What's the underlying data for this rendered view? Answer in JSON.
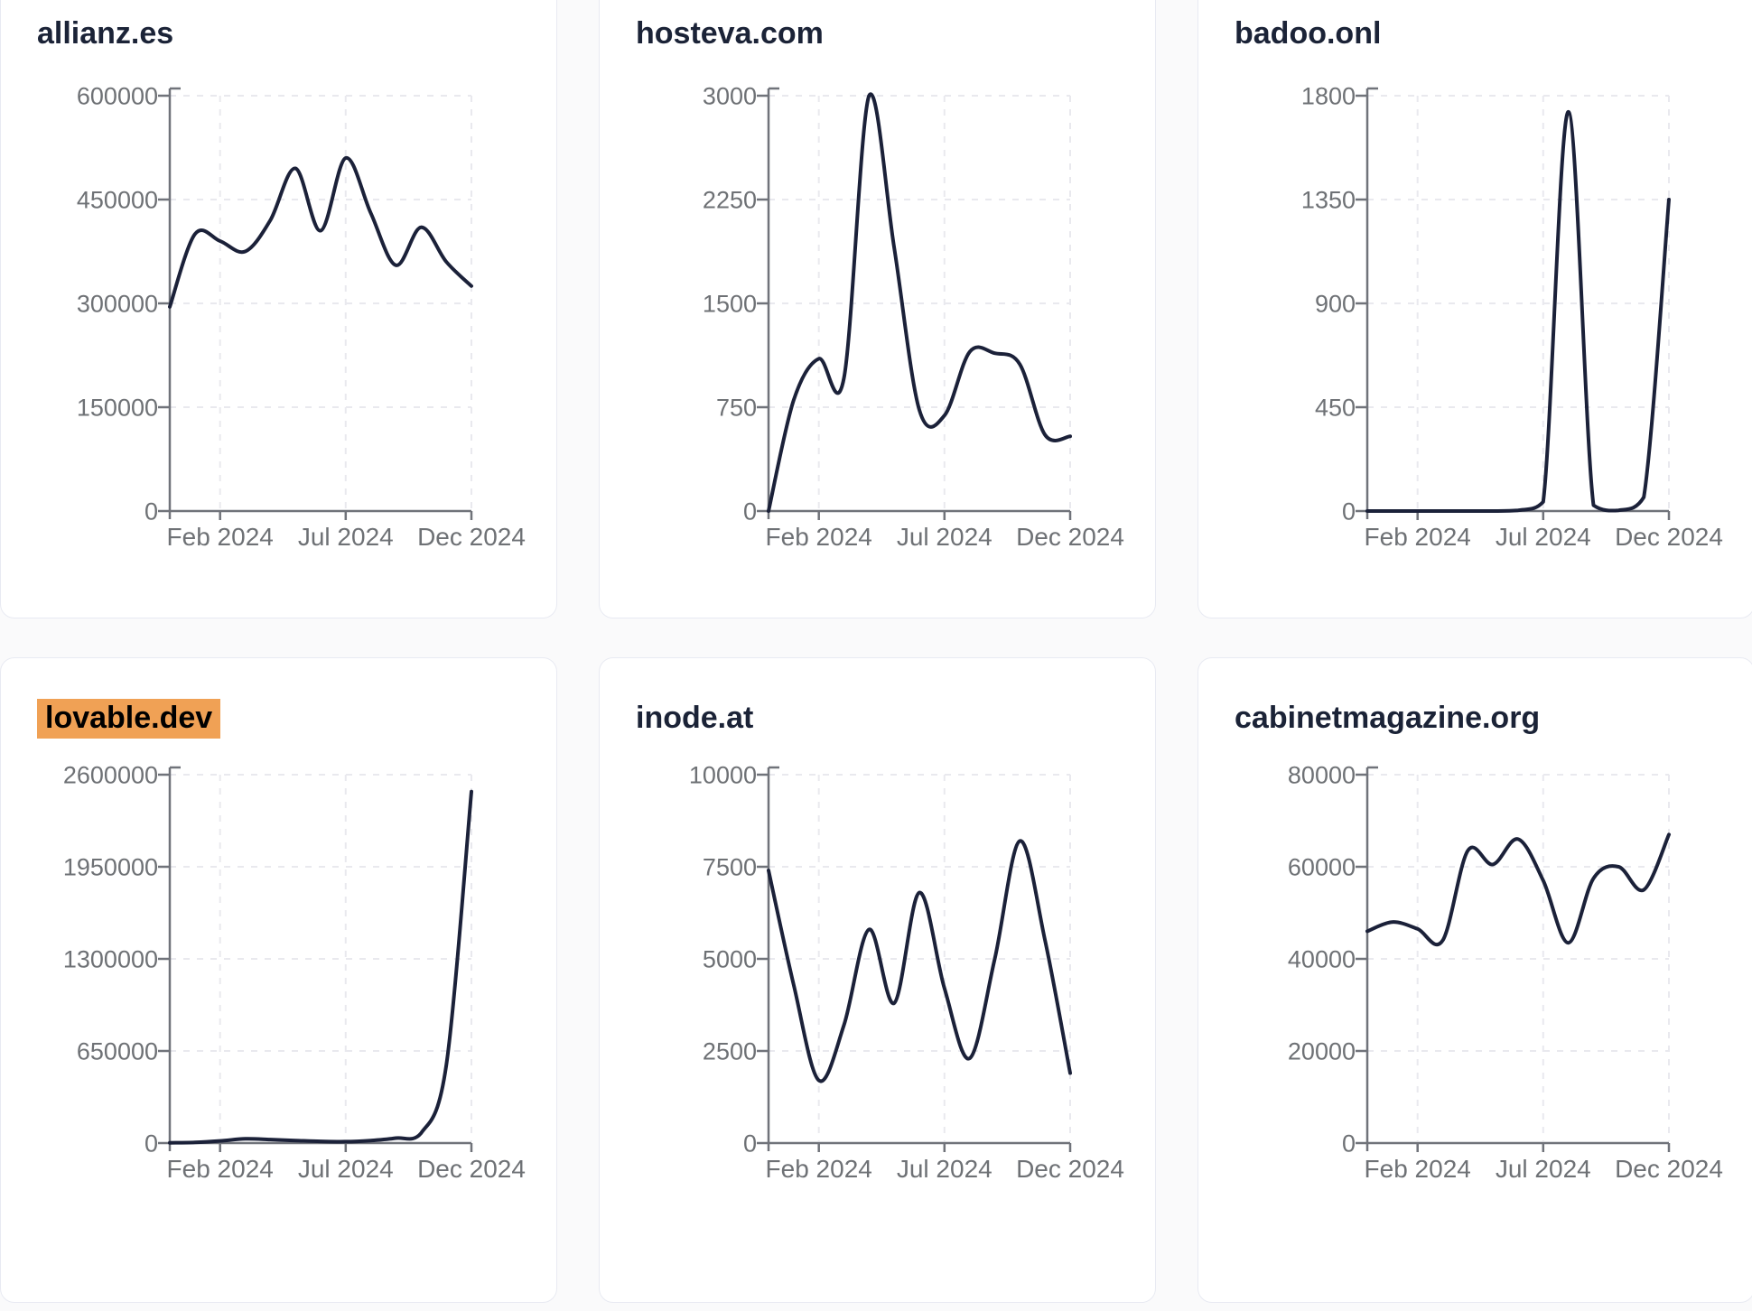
{
  "style": {
    "page_bg": "#fafafb",
    "card_bg": "#ffffff",
    "card_border": "#e8eaf2",
    "title_color": "#1b2337",
    "highlight_bg": "#f0a155",
    "highlight_text": "#000000",
    "line_color": "#1b2139",
    "axis_color": "#70737a",
    "tick_label_color": "#6e7175",
    "grid_color": "#e9e9ee"
  },
  "x_axis": {
    "tick_labels": [
      "Feb 2024",
      "Jul 2024",
      "Dec 2024"
    ],
    "tick_indices": [
      2,
      7,
      12
    ]
  },
  "chart_data": [
    {
      "type": "line",
      "title": "allianz.es",
      "highlighted": false,
      "x": [
        "Dec 2023",
        "Jan 2024",
        "Feb 2024",
        "Mar 2024",
        "Apr 2024",
        "May 2024",
        "Jun 2024",
        "Jul 2024",
        "Aug 2024",
        "Sep 2024",
        "Oct 2024",
        "Nov 2024",
        "Dec 2024"
      ],
      "values": [
        295000,
        400000,
        390000,
        375000,
        420000,
        495000,
        405000,
        510000,
        430000,
        355000,
        410000,
        360000,
        325000
      ],
      "ylim": [
        0,
        600000
      ],
      "y_ticks": [
        0,
        150000,
        300000,
        450000,
        600000
      ],
      "x_tick_labels": [
        "Feb 2024",
        "Jul 2024",
        "Dec 2024"
      ],
      "x_tick_indices": [
        2,
        7,
        12
      ],
      "grid": "dashed",
      "legend": false
    },
    {
      "type": "line",
      "title": "hosteva.com",
      "highlighted": false,
      "x": [
        "Dec 2023",
        "Jan 2024",
        "Feb 2024",
        "Mar 2024",
        "Apr 2024",
        "May 2024",
        "Jun 2024",
        "Jul 2024",
        "Aug 2024",
        "Sep 2024",
        "Oct 2024",
        "Nov 2024",
        "Dec 2024"
      ],
      "values": [
        0,
        800,
        1100,
        960,
        3000,
        1900,
        730,
        690,
        1150,
        1140,
        1060,
        550,
        540
      ],
      "ylim": [
        0,
        3000
      ],
      "y_ticks": [
        0,
        750,
        1500,
        2250,
        3000
      ],
      "x_tick_labels": [
        "Feb 2024",
        "Jul 2024",
        "Dec 2024"
      ],
      "x_tick_indices": [
        2,
        7,
        12
      ],
      "grid": "dashed",
      "legend": false
    },
    {
      "type": "line",
      "title": "badoo.onl",
      "highlighted": false,
      "x": [
        "Dec 2023",
        "Jan 2024",
        "Feb 2024",
        "Mar 2024",
        "Apr 2024",
        "May 2024",
        "Jun 2024",
        "Jul 2024",
        "Aug 2024",
        "Sep 2024",
        "Oct 2024",
        "Nov 2024",
        "Dec 2024"
      ],
      "values": [
        0,
        0,
        0,
        0,
        0,
        0,
        3,
        40,
        1730,
        25,
        3,
        60,
        1350
      ],
      "ylim": [
        0,
        1800
      ],
      "y_ticks": [
        0,
        450,
        900,
        1350,
        1800
      ],
      "x_tick_labels": [
        "Feb 2024",
        "Jul 2024",
        "Dec 2024"
      ],
      "x_tick_indices": [
        2,
        7,
        12
      ],
      "grid": "dashed",
      "legend": false
    },
    {
      "type": "line",
      "title": "lovable.dev",
      "highlighted": true,
      "x": [
        "Dec 2023",
        "Jan 2024",
        "Feb 2024",
        "Mar 2024",
        "Apr 2024",
        "May 2024",
        "Jun 2024",
        "Jul 2024",
        "Aug 2024",
        "Sep 2024",
        "Oct 2024",
        "Nov 2024",
        "Dec 2024"
      ],
      "values": [
        2000,
        5000,
        15000,
        30000,
        25000,
        18000,
        12000,
        10000,
        18000,
        35000,
        70000,
        550000,
        2480000
      ],
      "ylim": [
        0,
        2600000
      ],
      "y_ticks": [
        0,
        650000,
        1300000,
        1950000,
        2600000
      ],
      "x_tick_labels": [
        "Feb 2024",
        "Jul 2024",
        "Dec 2024"
      ],
      "x_tick_indices": [
        2,
        7,
        12
      ],
      "grid": "dashed",
      "legend": false
    },
    {
      "type": "line",
      "title": "inode.at",
      "highlighted": false,
      "x": [
        "Dec 2023",
        "Jan 2024",
        "Feb 2024",
        "Mar 2024",
        "Apr 2024",
        "May 2024",
        "Jun 2024",
        "Jul 2024",
        "Aug 2024",
        "Sep 2024",
        "Oct 2024",
        "Nov 2024",
        "Dec 2024"
      ],
      "values": [
        7400,
        4300,
        1700,
        3200,
        5800,
        3800,
        6800,
        4200,
        2300,
        5000,
        8200,
        5500,
        1900
      ],
      "ylim": [
        0,
        10000
      ],
      "y_ticks": [
        0,
        2500,
        5000,
        7500,
        10000
      ],
      "x_tick_labels": [
        "Feb 2024",
        "Jul 2024",
        "Dec 2024"
      ],
      "x_tick_indices": [
        2,
        7,
        12
      ],
      "grid": "dashed",
      "legend": false
    },
    {
      "type": "line",
      "title": "cabinetmagazine.org",
      "highlighted": false,
      "x": [
        "Dec 2023",
        "Jan 2024",
        "Feb 2024",
        "Mar 2024",
        "Apr 2024",
        "May 2024",
        "Jun 2024",
        "Jul 2024",
        "Aug 2024",
        "Sep 2024",
        "Oct 2024",
        "Nov 2024",
        "Dec 2024"
      ],
      "values": [
        46000,
        48000,
        46500,
        44000,
        63500,
        60500,
        66000,
        57000,
        43500,
        57500,
        60000,
        55000,
        67000
      ],
      "ylim": [
        0,
        80000
      ],
      "y_ticks": [
        0,
        20000,
        40000,
        60000,
        80000
      ],
      "x_tick_labels": [
        "Feb 2024",
        "Jul 2024",
        "Dec 2024"
      ],
      "x_tick_indices": [
        2,
        7,
        12
      ],
      "grid": "dashed",
      "legend": false
    }
  ]
}
